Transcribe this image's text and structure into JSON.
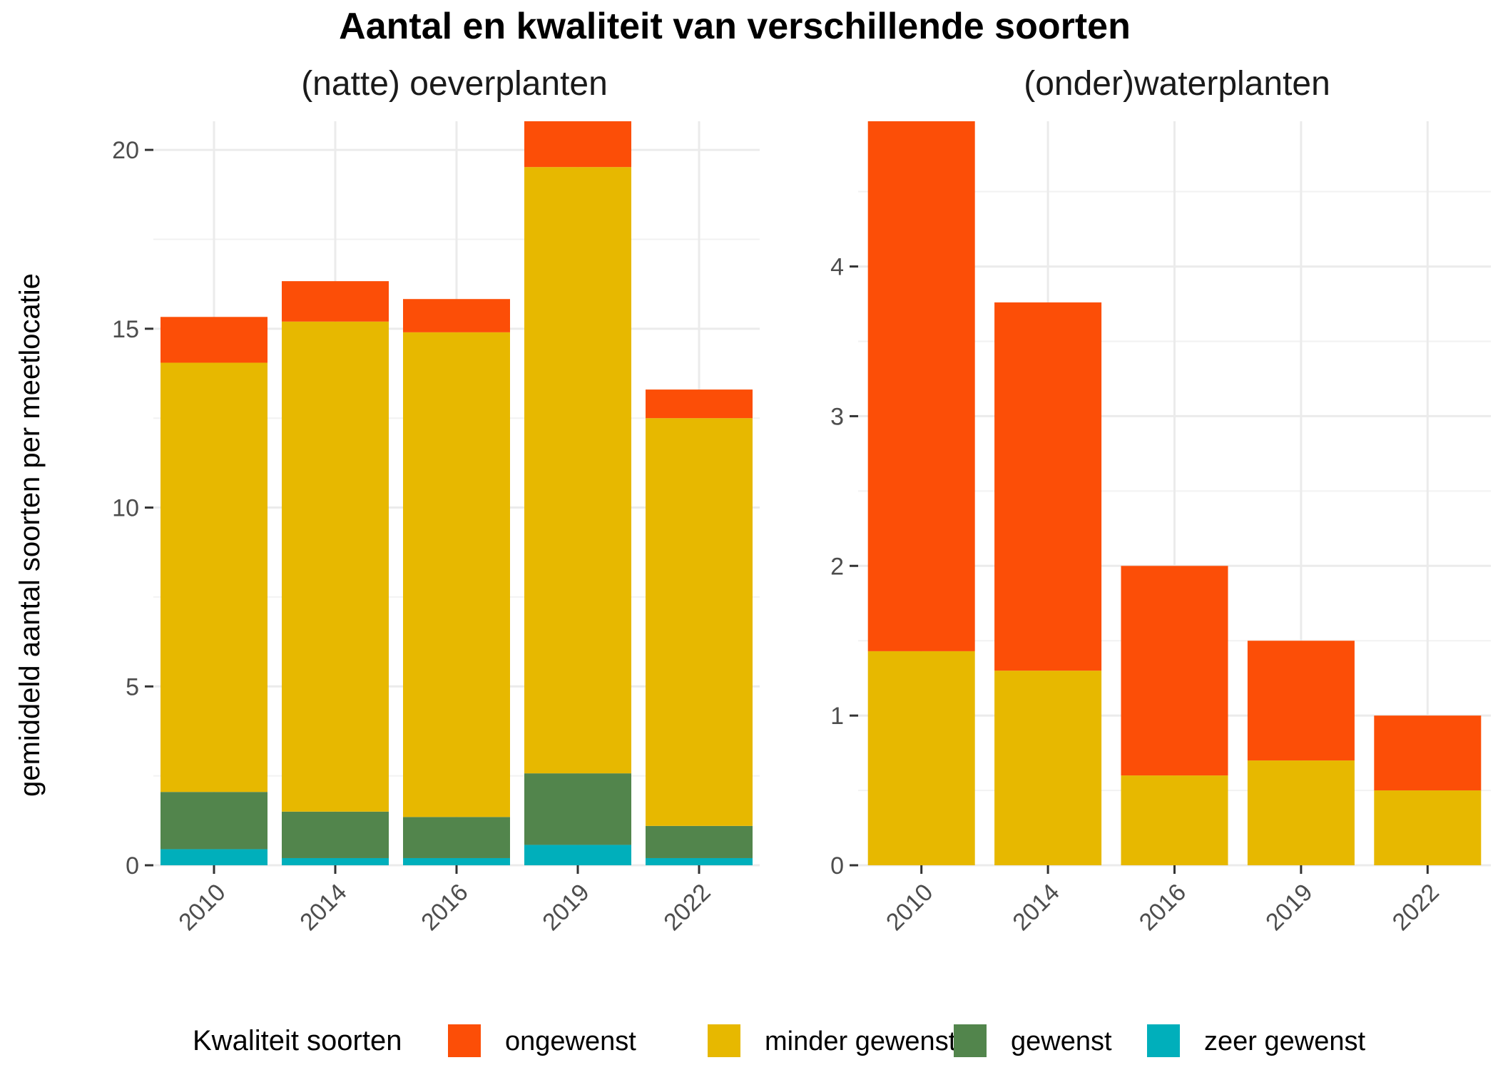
{
  "chart_data": {
    "type": "bar",
    "stacked": true,
    "title": "Aantal en kwaliteit van verschillende soorten",
    "ylabel": "gemiddeld aantal soorten per meetlocatie",
    "categories": [
      "2010",
      "2014",
      "2016",
      "2019",
      "2022"
    ],
    "legend": {
      "title": "Kwaliteit soorten",
      "placement": "bottom",
      "items": [
        {
          "name": "ongewenst",
          "color": "#fc4e07"
        },
        {
          "name": "minder gewenst",
          "color": "#e7b800"
        },
        {
          "name": "gewenst",
          "color": "#52854c"
        },
        {
          "name": "zeer gewenst",
          "color": "#00afbb"
        }
      ]
    },
    "panels": [
      {
        "title": "(natte) oeverplanten",
        "ylim": [
          0,
          20.8
        ],
        "yticks": [
          0,
          5,
          10,
          15,
          20
        ],
        "tick_labels": [
          "0",
          "5",
          "10",
          "15",
          "20"
        ],
        "series": [
          {
            "name": "zeer gewenst",
            "values": [
              0.45,
              0.2,
              0.2,
              0.57,
              0.2
            ]
          },
          {
            "name": "gewenst",
            "values": [
              1.6,
              1.3,
              1.15,
              2.0,
              0.9
            ]
          },
          {
            "name": "minder gewenst",
            "values": [
              12.0,
              13.7,
              13.55,
              16.95,
              11.4
            ]
          },
          {
            "name": "ongewenst",
            "values": [
              1.28,
              1.13,
              0.93,
              1.3,
              0.8
            ]
          }
        ]
      },
      {
        "title": "(onder)waterplanten",
        "ylim": [
          0,
          4.97
        ],
        "yticks": [
          0,
          1,
          2,
          3,
          4
        ],
        "tick_labels": [
          "0",
          "1",
          "2",
          "3",
          "4"
        ],
        "series": [
          {
            "name": "zeer gewenst",
            "values": [
              0,
              0,
              0,
              0,
              0
            ]
          },
          {
            "name": "gewenst",
            "values": [
              0,
              0,
              0,
              0,
              0
            ]
          },
          {
            "name": "minder gewenst",
            "values": [
              1.43,
              1.3,
              0.6,
              0.7,
              0.5
            ]
          },
          {
            "name": "ongewenst",
            "values": [
              3.54,
              2.46,
              1.4,
              0.8,
              0.5
            ]
          }
        ]
      }
    ]
  }
}
